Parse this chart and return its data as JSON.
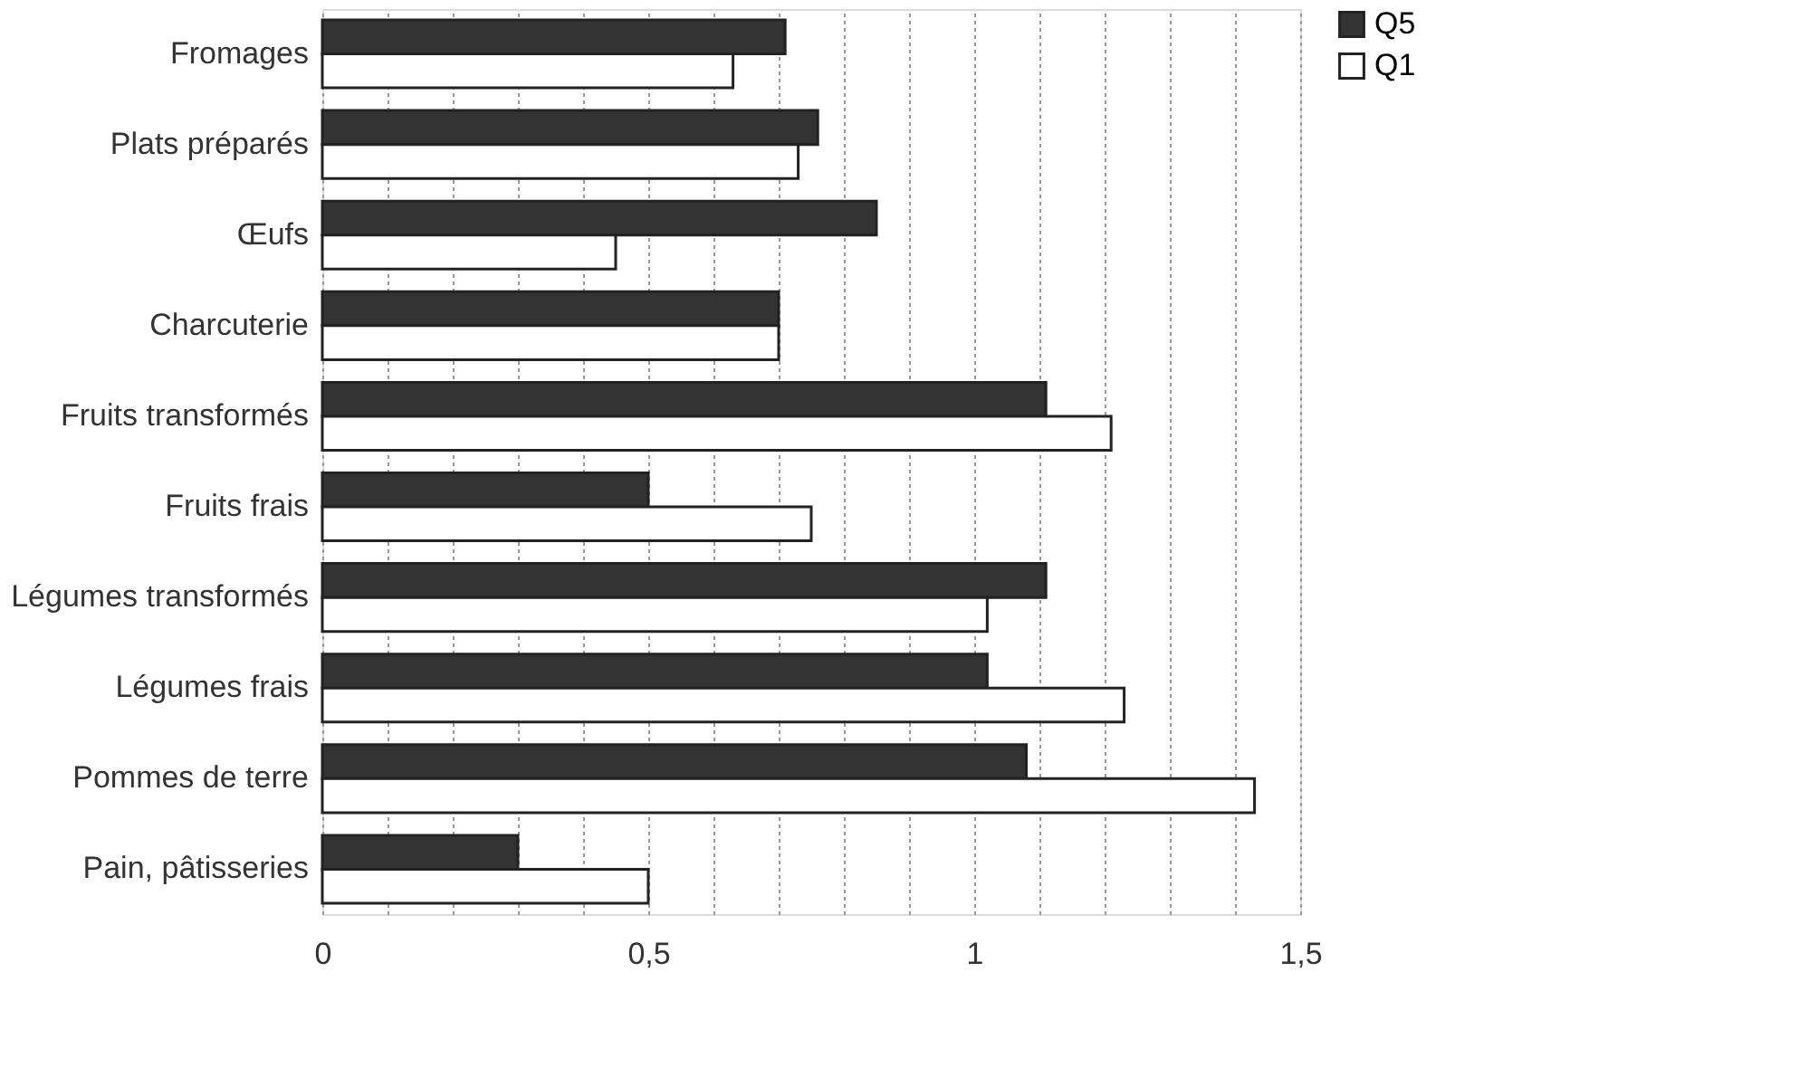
{
  "chart_data": {
    "type": "bar",
    "orientation": "horizontal",
    "categories": [
      "Fromages",
      "Plats préparés",
      "Œufs",
      "Charcuterie",
      "Fruits transformés",
      "Fruits frais",
      "Légumes transformés",
      "Légumes frais",
      "Pommes de terre",
      "Pain, pâtisseries"
    ],
    "series": [
      {
        "name": "Q5",
        "color": "#333333",
        "values": [
          0.71,
          0.76,
          0.85,
          0.7,
          1.11,
          0.5,
          1.11,
          1.02,
          1.08,
          0.3
        ]
      },
      {
        "name": "Q1",
        "color": "#ffffff",
        "values": [
          0.63,
          0.73,
          0.45,
          0.7,
          1.21,
          0.75,
          1.02,
          1.23,
          1.43,
          0.5
        ]
      }
    ],
    "xlim": [
      0,
      1.5
    ],
    "xticks": [
      0,
      {
        "value": 0.1,
        "label": null
      },
      {
        "value": 0.2,
        "label": null
      },
      {
        "value": 0.3,
        "label": null
      },
      {
        "value": 0.4,
        "label": null
      },
      {
        "value": 0.5,
        "label": "0,5"
      },
      {
        "value": 0.6,
        "label": null
      },
      {
        "value": 0.7,
        "label": null
      },
      {
        "value": 0.8,
        "label": null
      },
      {
        "value": 0.9,
        "label": null
      },
      1,
      {
        "value": 1.1,
        "label": null
      },
      {
        "value": 1.2,
        "label": null
      },
      {
        "value": 1.3,
        "label": null
      },
      {
        "value": 1.4,
        "label": null
      },
      {
        "value": 1.5,
        "label": "1,5"
      }
    ],
    "grid": "x",
    "legend": "right"
  }
}
